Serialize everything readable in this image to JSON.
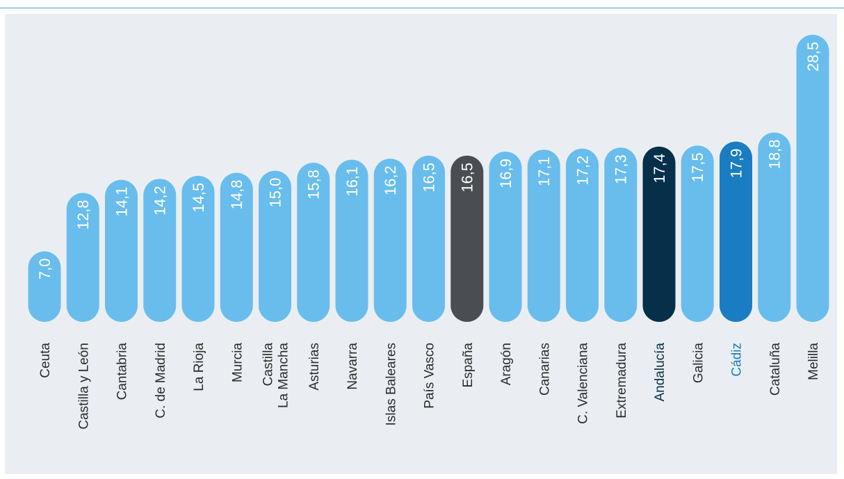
{
  "chart_data": {
    "type": "bar",
    "orientation": "vertical",
    "title": "",
    "xlabel": "",
    "ylabel": "",
    "grid": false,
    "ylim": [
      0,
      30
    ],
    "categories": [
      [
        "Ceuta"
      ],
      [
        "Castilla y León"
      ],
      [
        "Cantabria"
      ],
      [
        "C. de Madrid"
      ],
      [
        "La Rioja"
      ],
      [
        "Murcia"
      ],
      [
        "Castilla",
        "La Mancha"
      ],
      [
        "Asturias"
      ],
      [
        "Navarra"
      ],
      [
        "Islas Baleares"
      ],
      [
        "País Vasco"
      ],
      [
        "España"
      ],
      [
        "Aragón"
      ],
      [
        "Canarias"
      ],
      [
        "C. Valenciana"
      ],
      [
        "Extremadura"
      ],
      [
        "Andalucía"
      ],
      [
        "Galicia"
      ],
      [
        "Cádiz"
      ],
      [
        "Cataluña"
      ],
      [
        "Melilla"
      ]
    ],
    "values": [
      7.0,
      12.8,
      14.1,
      14.2,
      14.5,
      14.8,
      15.0,
      15.8,
      16.1,
      16.2,
      16.5,
      16.5,
      16.9,
      17.1,
      17.2,
      17.3,
      17.4,
      17.5,
      17.9,
      18.8,
      28.5
    ],
    "value_labels": [
      "7,0",
      "12,8",
      "14,1",
      "14,2",
      "14,5",
      "14,8",
      "15,0",
      "15,8",
      "16,1",
      "16,2",
      "16,5",
      "16,5",
      "16,9",
      "17,1",
      "17,2",
      "17,3",
      "17,4",
      "17,5",
      "17,9",
      "18,8",
      "28,5"
    ],
    "highlights": {
      "España": "#4a4d52",
      "Andalucía": "#062f4a",
      "Cádiz": "#1a7dc1"
    },
    "colors": {
      "default_bar": "#69bdec",
      "default_label": "#2b2b2b",
      "value_text": "#ffffff",
      "background": "#eaeef2",
      "top_rule": "#3fa3d8"
    }
  }
}
